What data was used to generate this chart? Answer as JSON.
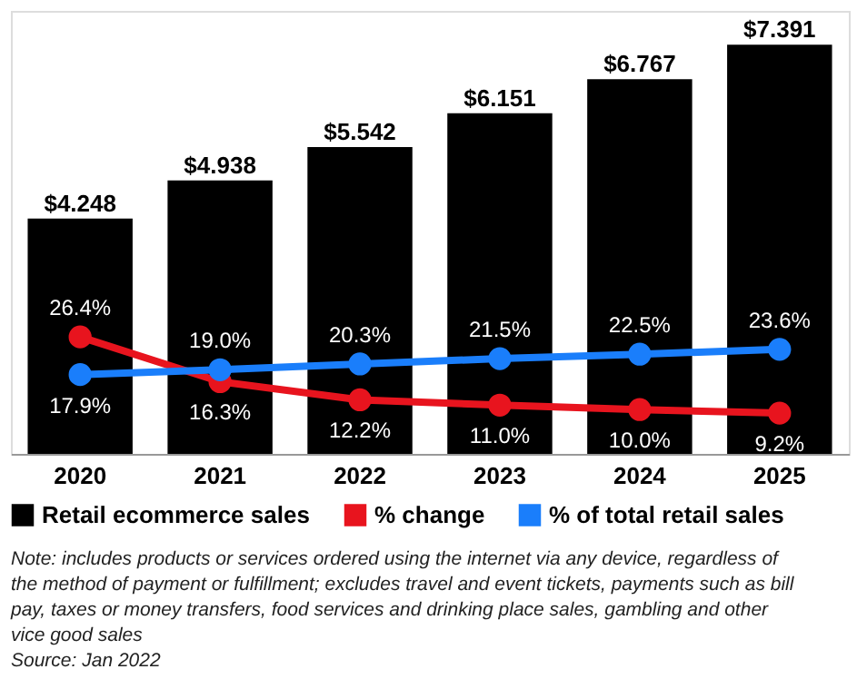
{
  "chart_data": {
    "type": "bar",
    "categories": [
      "2020",
      "2021",
      "2022",
      "2023",
      "2024",
      "2025"
    ],
    "series": [
      {
        "name": "Retail ecommerce sales",
        "color": "#000000",
        "values": [
          4.248,
          4.938,
          5.542,
          6.151,
          6.767,
          7.391
        ],
        "value_labels": [
          "$4.248",
          "$4.938",
          "$5.542",
          "$6.151",
          "$6.767",
          "$7.391"
        ]
      },
      {
        "name": "% change",
        "type": "line",
        "axis": "y2",
        "marker": "circle",
        "color": "#e8141e",
        "values": [
          26.4,
          16.3,
          12.2,
          11.0,
          10.0,
          9.2
        ],
        "value_labels": [
          "26.4%",
          "16.3%",
          "12.2%",
          "11.0%",
          "10.0%",
          "9.2%"
        ]
      },
      {
        "name": "% of total retail sales",
        "type": "line",
        "axis": "y2",
        "marker": "circle",
        "color": "#1a7efb",
        "values": [
          17.9,
          19.0,
          20.3,
          21.5,
          22.5,
          23.6
        ],
        "value_labels": [
          "17.9%",
          "19.0%",
          "20.3%",
          "21.5%",
          "22.5%",
          "23.6%"
        ]
      }
    ],
    "legend": "bottom",
    "grid": false,
    "y2lim": [
      0,
      100
    ],
    "annotations": [
      "Note: includes products or services ordered using the internet via any device, regardless of",
      "the method of payment or fulfillment; excludes travel and event tickets, payments such as bill",
      "pay, taxes or money transfers, food services and drinking place sales, gambling and other",
      "vice good sales",
      "Source: Jan 2022"
    ]
  }
}
